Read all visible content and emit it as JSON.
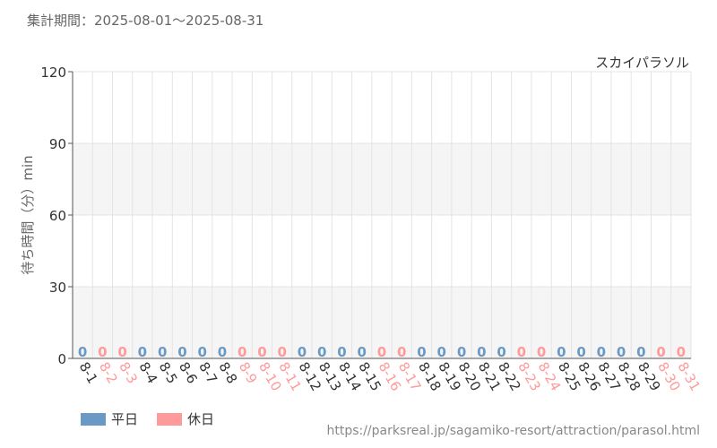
{
  "period_text": "集計期間：2025-08-01〜2025-08-31",
  "source_text": "https://parksreal.jp/sagamiko-resort/attraction/parasol.html",
  "legend": [
    {
      "label": "平日",
      "color": "#6a9ac4"
    },
    {
      "label": "休日",
      "color": "#ff9a9a"
    }
  ],
  "chart_data": {
    "type": "bar",
    "title": "スカイパラソル",
    "ylabel": "待ち時間（分）min",
    "ylim": [
      0,
      120
    ],
    "yticks": [
      0,
      30,
      60,
      90,
      120
    ],
    "grid": true,
    "legend_position": "bottom-left",
    "categories": [
      "8-1",
      "8-2",
      "8-3",
      "8-4",
      "8-5",
      "8-6",
      "8-7",
      "8-8",
      "8-9",
      "8-10",
      "8-11",
      "8-12",
      "8-13",
      "8-14",
      "8-15",
      "8-16",
      "8-17",
      "8-18",
      "8-19",
      "8-20",
      "8-21",
      "8-22",
      "8-23",
      "8-24",
      "8-25",
      "8-26",
      "8-27",
      "8-28",
      "8-29",
      "8-30",
      "8-31"
    ],
    "values": [
      0,
      0,
      0,
      0,
      0,
      0,
      0,
      0,
      0,
      0,
      0,
      0,
      0,
      0,
      0,
      0,
      0,
      0,
      0,
      0,
      0,
      0,
      0,
      0,
      0,
      0,
      0,
      0,
      0,
      0,
      0
    ],
    "day_type": [
      "平日",
      "休日",
      "休日",
      "平日",
      "平日",
      "平日",
      "平日",
      "平日",
      "休日",
      "休日",
      "休日",
      "平日",
      "平日",
      "平日",
      "平日",
      "休日",
      "休日",
      "平日",
      "平日",
      "平日",
      "平日",
      "平日",
      "休日",
      "休日",
      "平日",
      "平日",
      "平日",
      "平日",
      "平日",
      "休日",
      "休日"
    ],
    "colors": {
      "平日": "#6a9ac4",
      "休日": "#ff9a9a",
      "tick_weekday": "#333333"
    }
  }
}
